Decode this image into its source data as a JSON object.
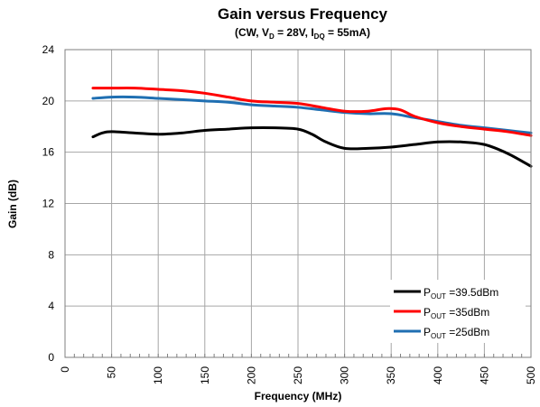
{
  "chart_data": {
    "type": "line",
    "title": "Gain versus Frequency",
    "subtitle": {
      "prefix": "(CW, V",
      "vd_sub": "D",
      "mid": " = 28V, I",
      "idq_sub": "DQ",
      "suffix": " = 55mA)"
    },
    "xlabel": "Frequency (MHz)",
    "ylabel": "Gain (dB)",
    "xlim": [
      0,
      500
    ],
    "ylim": [
      0,
      24
    ],
    "xticks": [
      0,
      50,
      100,
      150,
      200,
      250,
      300,
      350,
      400,
      450,
      500
    ],
    "yticks": [
      0,
      4,
      8,
      12,
      16,
      20,
      24
    ],
    "x_minor_step": 10,
    "grid": true,
    "legend_position": "bottom-right",
    "series": [
      {
        "name": "P_OUT =39.5dBm",
        "label_main": "P",
        "label_sub": "OUT",
        "label_tail": " =39.5dBm",
        "color": "#000000",
        "x": [
          30,
          40,
          50,
          75,
          100,
          125,
          150,
          175,
          200,
          225,
          250,
          265,
          280,
          300,
          325,
          350,
          375,
          400,
          425,
          450,
          475,
          500
        ],
        "y": [
          17.2,
          17.5,
          17.6,
          17.5,
          17.4,
          17.5,
          17.7,
          17.8,
          17.9,
          17.9,
          17.8,
          17.4,
          16.8,
          16.3,
          16.3,
          16.4,
          16.6,
          16.8,
          16.8,
          16.6,
          15.9,
          14.9
        ]
      },
      {
        "name": "P_OUT =35dBm",
        "label_main": "P",
        "label_sub": "OUT",
        "label_tail": " =35dBm",
        "color": "#ff0000",
        "x": [
          30,
          50,
          75,
          100,
          125,
          150,
          175,
          200,
          225,
          250,
          275,
          300,
          325,
          345,
          360,
          375,
          400,
          425,
          450,
          475,
          500
        ],
        "y": [
          21.0,
          21.0,
          21.0,
          20.9,
          20.8,
          20.6,
          20.3,
          20.0,
          19.9,
          19.8,
          19.5,
          19.2,
          19.2,
          19.4,
          19.3,
          18.8,
          18.3,
          18.0,
          17.8,
          17.6,
          17.3
        ]
      },
      {
        "name": "P_OUT =25dBm",
        "label_main": "P",
        "label_sub": "OUT",
        "label_tail": " =25dBm",
        "color": "#1f6fb2",
        "x": [
          30,
          50,
          75,
          100,
          125,
          150,
          175,
          200,
          225,
          250,
          275,
          300,
          325,
          350,
          375,
          400,
          425,
          450,
          475,
          500
        ],
        "y": [
          20.2,
          20.3,
          20.3,
          20.2,
          20.1,
          20.0,
          19.9,
          19.7,
          19.6,
          19.5,
          19.3,
          19.1,
          19.0,
          19.0,
          18.7,
          18.4,
          18.1,
          17.9,
          17.7,
          17.5
        ]
      }
    ]
  }
}
